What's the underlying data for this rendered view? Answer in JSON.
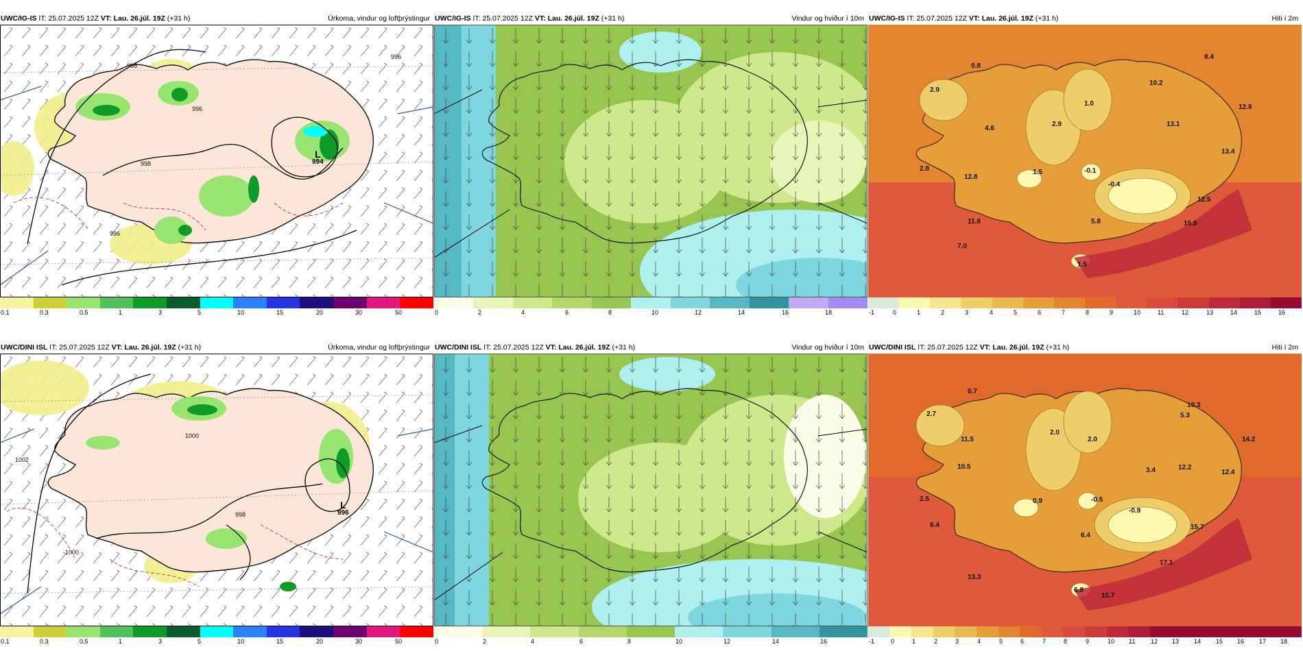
{
  "colors": {
    "precip": [
      "#ffffff",
      "#f6f2a0",
      "#cfcf3a",
      "#98e470",
      "#4fc25a",
      "#0f9b28",
      "#0b5a2c",
      "#00ffff",
      "#2a82ff",
      "#2235e0",
      "#1c1080",
      "#700070",
      "#e01880",
      "#ff0000"
    ],
    "wind": [
      "#fbfde8",
      "#e8f5b8",
      "#cfe88c",
      "#b3d86a",
      "#96c650",
      "#aef0f0",
      "#7ed6de",
      "#56b8c2",
      "#2f96a0",
      "#c2a8f2",
      "#a38af0"
    ],
    "temp": [
      "#d8ecd8",
      "#fff8b0",
      "#f7e48c",
      "#efce6a",
      "#e9b850",
      "#e69e38",
      "#e3842e",
      "#e06a2c",
      "#de5a3a",
      "#d84a3c",
      "#cc3a3a",
      "#be2a3a",
      "#ad1c38",
      "#960c30"
    ]
  },
  "panels": [
    {
      "model": "UWC/IG-IS",
      "it_label": "IT: 25.07.2025 12Z",
      "vt_label": "VT: Lau. 26.júl. 19Z",
      "lead": "(+31 h)",
      "field": "Úrkoma, vindur og loftþrýstingur",
      "ticks": [
        "0.1",
        "0.3",
        "0.5",
        "1",
        "3",
        "5",
        "10",
        "15",
        "20",
        "30",
        "50"
      ],
      "pressure_L": "L",
      "pressure_value": "994",
      "isobars": [
        "998",
        "996",
        "996",
        "998",
        "996"
      ]
    },
    {
      "model": "UWC/IG-IS",
      "it_label": "IT: 25.07.2025 12Z",
      "vt_label": "VT: Lau. 26.júl. 19Z",
      "lead": "(+31 h)",
      "field": "Vindur og hviður í 10m",
      "ticks": [
        "0",
        "2",
        "4",
        "6",
        "8",
        "10",
        "12",
        "14",
        "16",
        "18"
      ]
    },
    {
      "model": "UWC/IG-IS",
      "it_label": "IT: 25.07.2025 12Z",
      "vt_label": "VT: Lau. 26.júl. 19Z",
      "lead": "(+31 h)",
      "field": "Hiti í 2m",
      "ticks": [
        "-1",
        "0",
        "1",
        "2",
        "3",
        "4",
        "5",
        "6",
        "7",
        "8",
        "9",
        "10",
        "11",
        "12",
        "13",
        "14",
        "15",
        "16"
      ],
      "temps": [
        "0.8",
        "8.4",
        "2.9",
        "10.2",
        "1.0",
        "12.9",
        "4.6",
        "2.9",
        "13.1",
        "13.4",
        "2.8",
        "12.8",
        "1.5",
        "-0.1",
        "-0.4",
        "12.5",
        "11.6",
        "5.8",
        "15.9",
        "7.0",
        "1.5"
      ]
    },
    {
      "model": "UWC/DINI ISL",
      "it_label": "IT: 25.07.2025 12Z",
      "vt_label": "VT: Lau. 26.júl. 19Z",
      "lead": "(+31 h)",
      "field": "Úrkoma, vindur og loftþrýstingur",
      "ticks": [
        "0.1",
        "0.3",
        "0.5",
        "1",
        "3",
        "5",
        "10",
        "15",
        "20",
        "30",
        "50"
      ],
      "pressure_L": "L",
      "pressure_value": "996",
      "isobars": [
        "1002",
        "1000",
        "998",
        "1000"
      ]
    },
    {
      "model": "UWC/DINI ISL",
      "it_label": "IT: 25.07.2025 12Z",
      "vt_label": "VT: Lau. 26.júl. 19Z",
      "lead": "(+31 h)",
      "field": "Vindur og hviður í 10m",
      "ticks": [
        "0",
        "2",
        "4",
        "6",
        "8",
        "10",
        "12",
        "14",
        "16"
      ]
    },
    {
      "model": "UWC/DINI ISL",
      "it_label": "IT: 25.07.2025 12Z",
      "vt_label": "VT: Lau. 26.júl. 19Z",
      "lead": "(+31 h)",
      "field": "Hiti í 2m",
      "ticks": [
        "-1",
        "0",
        "1",
        "2",
        "3",
        "4",
        "5",
        "6",
        "7",
        "8",
        "9",
        "10",
        "11",
        "12",
        "13",
        "14",
        "15",
        "16",
        "17",
        "18"
      ],
      "temps": [
        "0.7",
        "10.3",
        "2.7",
        "5.3",
        "11.5",
        "2.0",
        "2.0",
        "14.2",
        "10.5",
        "3.4",
        "12.2",
        "12.4",
        "2.5",
        "0.9",
        "-0.5",
        "-0.9",
        "6.4",
        "15.7",
        "6.4",
        "17.1",
        "13.3",
        "6.8",
        "15.7"
      ]
    }
  ]
}
